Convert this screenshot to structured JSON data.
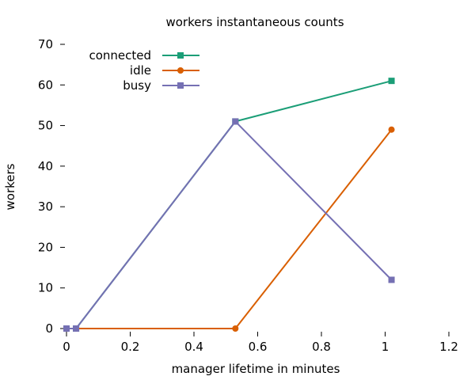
{
  "chart_data": {
    "type": "line",
    "title": "workers instantaneous counts",
    "xlabel": "manager lifetime in minutes",
    "ylabel": "workers",
    "xlim": [
      0,
      1.2
    ],
    "ylim": [
      0,
      70
    ],
    "xticks": [
      0,
      0.2,
      0.4,
      0.6,
      0.8,
      1,
      1.2
    ],
    "xtick_labels": [
      "0",
      "0.2",
      "0.4",
      "0.6",
      "0.8",
      "1",
      "1.2"
    ],
    "yticks": [
      0,
      10,
      20,
      30,
      40,
      50,
      60,
      70
    ],
    "ytick_labels": [
      "0",
      "10",
      "20",
      "30",
      "40",
      "50",
      "60",
      "70"
    ],
    "grid": false,
    "legend_position": "top-left",
    "series": [
      {
        "name": "connected",
        "color": "#1b9e77",
        "marker": "square",
        "x": [
          0,
          0.03,
          0.53,
          1.02
        ],
        "y": [
          0,
          0,
          51,
          61
        ]
      },
      {
        "name": "idle",
        "color": "#d95f02",
        "marker": "circle",
        "x": [
          0,
          0.03,
          0.53,
          1.02
        ],
        "y": [
          0,
          0,
          0,
          49
        ]
      },
      {
        "name": "busy",
        "color": "#7570b3",
        "marker": "square",
        "x": [
          0,
          0.03,
          0.53,
          1.02
        ],
        "y": [
          0,
          0,
          51,
          12
        ]
      }
    ]
  }
}
